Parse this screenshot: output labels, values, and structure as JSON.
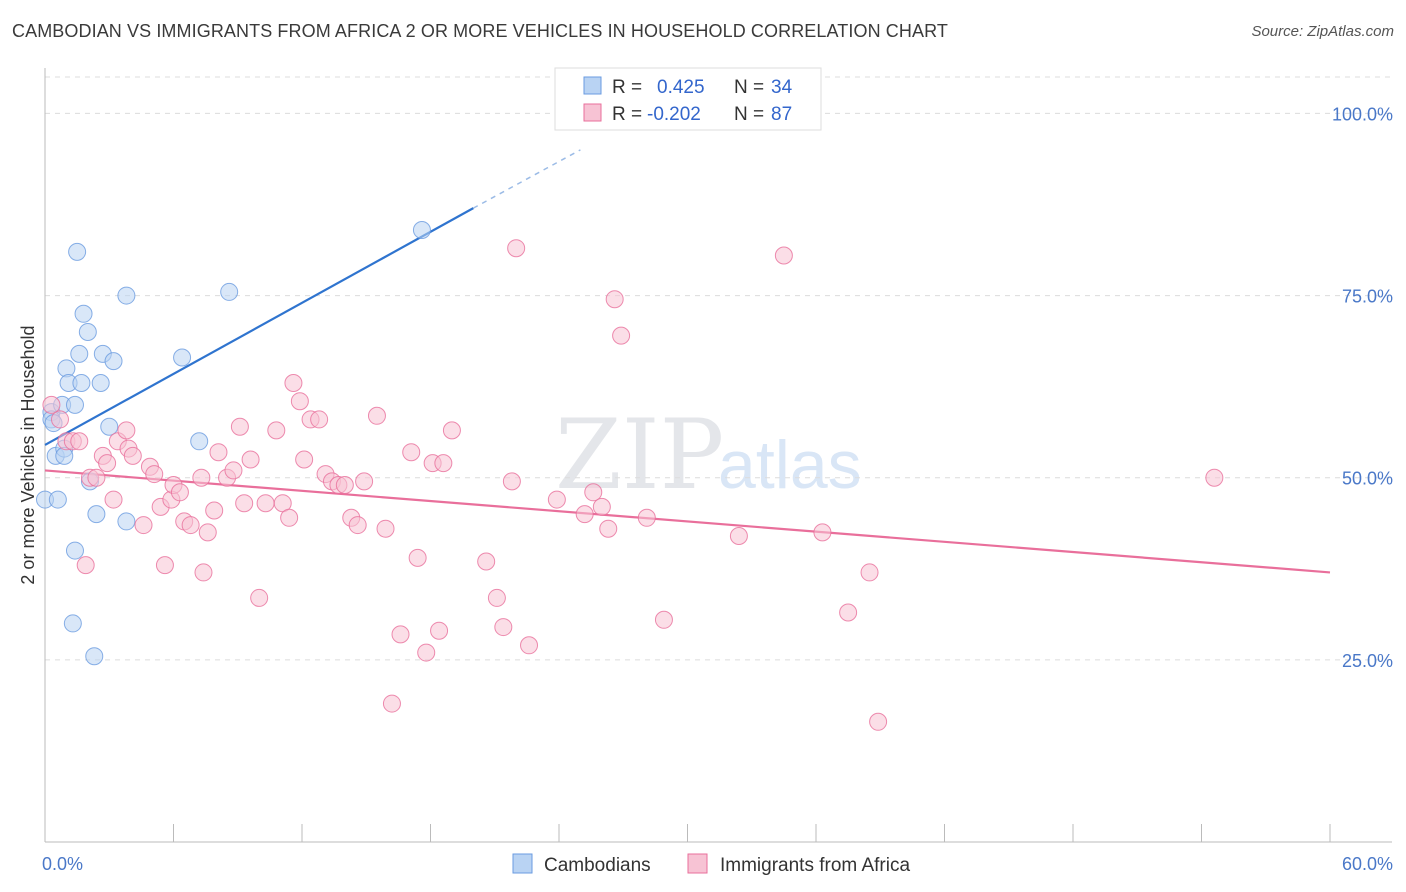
{
  "title": "CAMBODIAN VS IMMIGRANTS FROM AFRICA 2 OR MORE VEHICLES IN HOUSEHOLD CORRELATION CHART",
  "source": "Source: ZipAtlas.com",
  "watermark": {
    "zip": "ZIP",
    "atlas": "atlas"
  },
  "legend_box": {
    "rows": [
      {
        "r_label": "R =",
        "r_value": "0.425",
        "n_label": "N =",
        "n_value": "34",
        "color": "#a9c8f0"
      },
      {
        "r_label": "R =",
        "r_value": "-0.202",
        "n_label": "N =",
        "n_value": "87",
        "color": "#f5b5c8"
      }
    ]
  },
  "chart_data": {
    "type": "scatter",
    "title": "CAMBODIAN VS IMMIGRANTS FROM AFRICA 2 OR MORE VEHICLES IN HOUSEHOLD CORRELATION CHART",
    "xlabel": "",
    "ylabel": "2 or more Vehicles in Household",
    "xlim": [
      0,
      60
    ],
    "ylim": [
      0,
      105
    ],
    "x_tick_labels": [
      "0.0%",
      "60.0%"
    ],
    "y_ticks": [
      25,
      50,
      75,
      100
    ],
    "y_tick_labels": [
      "25.0%",
      "50.0%",
      "75.0%",
      "100.0%"
    ],
    "series": [
      {
        "name": "Cambodians",
        "color": "#6a9be0",
        "fill": "#b9d3f3",
        "points": [
          [
            0.0,
            47
          ],
          [
            0.3,
            59
          ],
          [
            0.3,
            58
          ],
          [
            0.4,
            57.5
          ],
          [
            0.5,
            53
          ],
          [
            0.6,
            47
          ],
          [
            0.8,
            60
          ],
          [
            0.9,
            54
          ],
          [
            0.9,
            53
          ],
          [
            1.0,
            65
          ],
          [
            1.1,
            63
          ],
          [
            1.3,
            30
          ],
          [
            1.4,
            60
          ],
          [
            1.4,
            40
          ],
          [
            1.5,
            81
          ],
          [
            1.6,
            67
          ],
          [
            1.7,
            63
          ],
          [
            1.8,
            72.5
          ],
          [
            2.0,
            70
          ],
          [
            2.1,
            49.5
          ],
          [
            2.3,
            25.5
          ],
          [
            2.4,
            45
          ],
          [
            2.6,
            63
          ],
          [
            2.7,
            67
          ],
          [
            3.0,
            57
          ],
          [
            3.2,
            66
          ],
          [
            3.8,
            75
          ],
          [
            3.8,
            44
          ],
          [
            6.4,
            66.5
          ],
          [
            7.2,
            55
          ],
          [
            8.6,
            75.5
          ],
          [
            17.6,
            84
          ]
        ],
        "trend": {
          "x1": 0,
          "y1": 54.5,
          "x2": 20,
          "y2": 87,
          "dashed_to": {
            "x": 25,
            "y": 95
          }
        }
      },
      {
        "name": "Immigrants from Africa",
        "color": "#e96f9b",
        "fill": "#f7c3d4",
        "points": [
          [
            0.3,
            60
          ],
          [
            0.7,
            58
          ],
          [
            1.0,
            55
          ],
          [
            1.3,
            55
          ],
          [
            1.6,
            55
          ],
          [
            1.9,
            38
          ],
          [
            2.1,
            50
          ],
          [
            2.4,
            50
          ],
          [
            2.7,
            53
          ],
          [
            2.9,
            52
          ],
          [
            3.2,
            47
          ],
          [
            3.4,
            55
          ],
          [
            3.8,
            56.5
          ],
          [
            3.9,
            54
          ],
          [
            4.1,
            53
          ],
          [
            4.6,
            43.5
          ],
          [
            4.9,
            51.5
          ],
          [
            5.1,
            50.5
          ],
          [
            5.4,
            46
          ],
          [
            5.6,
            38
          ],
          [
            5.9,
            47
          ],
          [
            6.0,
            49
          ],
          [
            6.3,
            48
          ],
          [
            6.5,
            44
          ],
          [
            6.8,
            43.5
          ],
          [
            7.3,
            50
          ],
          [
            7.4,
            37
          ],
          [
            7.6,
            42.5
          ],
          [
            7.9,
            45.5
          ],
          [
            8.1,
            53.5
          ],
          [
            8.5,
            50
          ],
          [
            8.8,
            51
          ],
          [
            9.1,
            57
          ],
          [
            9.3,
            46.5
          ],
          [
            9.6,
            52.5
          ],
          [
            10.0,
            33.5
          ],
          [
            10.3,
            46.5
          ],
          [
            10.8,
            56.5
          ],
          [
            11.1,
            46.5
          ],
          [
            11.4,
            44.5
          ],
          [
            11.6,
            63
          ],
          [
            11.9,
            60.5
          ],
          [
            12.1,
            52.5
          ],
          [
            12.4,
            58
          ],
          [
            12.8,
            58
          ],
          [
            13.1,
            50.5
          ],
          [
            13.4,
            49.5
          ],
          [
            13.7,
            49
          ],
          [
            14.0,
            49
          ],
          [
            14.3,
            44.5
          ],
          [
            14.6,
            43.5
          ],
          [
            14.9,
            49.5
          ],
          [
            15.5,
            58.5
          ],
          [
            15.9,
            43
          ],
          [
            16.2,
            19
          ],
          [
            16.6,
            28.5
          ],
          [
            17.1,
            53.5
          ],
          [
            17.4,
            39
          ],
          [
            17.8,
            26
          ],
          [
            18.1,
            52
          ],
          [
            18.4,
            29
          ],
          [
            18.6,
            52
          ],
          [
            19.0,
            56.5
          ],
          [
            20.6,
            38.5
          ],
          [
            21.1,
            33.5
          ],
          [
            21.4,
            29.5
          ],
          [
            21.8,
            49.5
          ],
          [
            22.0,
            81.5
          ],
          [
            22.6,
            27
          ],
          [
            23.9,
            47
          ],
          [
            25.2,
            45
          ],
          [
            25.6,
            48
          ],
          [
            26.0,
            46
          ],
          [
            26.3,
            43
          ],
          [
            26.6,
            74.5
          ],
          [
            26.9,
            69.5
          ],
          [
            28.1,
            44.5
          ],
          [
            28.9,
            30.5
          ],
          [
            32.4,
            42
          ],
          [
            34.5,
            80.5
          ],
          [
            36.3,
            42.5
          ],
          [
            37.5,
            31.5
          ],
          [
            38.5,
            37
          ],
          [
            38.9,
            16.5
          ],
          [
            54.6,
            50
          ]
        ],
        "trend": {
          "x1": 0,
          "y1": 51,
          "x2": 60,
          "y2": 37
        }
      }
    ]
  },
  "bottom_legend": {
    "items": [
      {
        "label": "Cambodians",
        "color": "#b9d3f3"
      },
      {
        "label": "Immigrants from Africa",
        "color": "#f7c3d4"
      }
    ]
  }
}
